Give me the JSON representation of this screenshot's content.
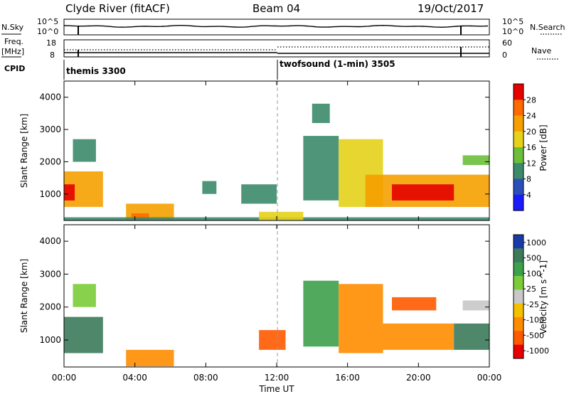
{
  "header": {
    "station": "Clyde River (fitACF)",
    "beam": "Beam 04",
    "date": "19/Oct/2017"
  },
  "top_panel": {
    "left_label": "N.Sky",
    "left_ticks": [
      "10^5",
      "10^0"
    ],
    "right_label": "N.Search",
    "right_ticks": [
      "10^5",
      "10^0"
    ]
  },
  "freq_panel": {
    "left_label_1": "Freq.",
    "left_label_2": "[MHz]",
    "left_ticks": [
      "18",
      "8"
    ],
    "right_label": "Nave",
    "right_ticks": [
      "60",
      "0"
    ],
    "cpid_label": "CPID"
  },
  "cpid": [
    {
      "name": "themis 3300",
      "start_hour": 0
    },
    {
      "name": "twofsound (1-min) 3505",
      "start_hour": 12
    }
  ],
  "colors": {
    "power_scale": [
      "#1a1aff",
      "#2b4fb8",
      "#3c8a6a",
      "#6cbf3a",
      "#e6d21a",
      "#f5a000",
      "#ff6a00",
      "#e60000"
    ],
    "velocity_scale": [
      "#1a3aa8",
      "#3c7a5a",
      "#3da04a",
      "#7acc3a",
      "#c8c8c8",
      "#f5c000",
      "#ff8c00",
      "#ff5a00",
      "#e60000"
    ]
  },
  "chart_data": [
    {
      "type": "heatmap",
      "title": "Power",
      "ylabel": "Slant Range [km]",
      "xlabel": "Time UT",
      "x_ticks": [
        "00:00",
        "04:00",
        "08:00",
        "12:00",
        "16:00",
        "20:00",
        "00:00"
      ],
      "xlim": [
        0,
        24
      ],
      "ylim": [
        180,
        4500
      ],
      "y_ticks": [
        1000,
        2000,
        3000,
        4000
      ],
      "colorbar": {
        "label": "Power [dB]",
        "ticks": [
          4,
          8,
          12,
          16,
          20,
          24,
          28
        ],
        "range": [
          0,
          32
        ]
      },
      "regions": [
        {
          "t0": 0.0,
          "t1": 2.2,
          "r0": 600,
          "r1": 1700,
          "value": 20
        },
        {
          "t0": 0.0,
          "t1": 0.6,
          "r0": 800,
          "r1": 1300,
          "value": 28
        },
        {
          "t0": 0.5,
          "t1": 1.8,
          "r0": 2000,
          "r1": 2700,
          "value": 8
        },
        {
          "t0": 3.5,
          "t1": 6.2,
          "r0": 200,
          "r1": 700,
          "value": 22
        },
        {
          "t0": 3.8,
          "t1": 4.8,
          "r0": 200,
          "r1": 400,
          "value": 26
        },
        {
          "t0": 0.0,
          "t1": 24.0,
          "r0": 180,
          "r1": 280,
          "value": 10
        },
        {
          "t0": 10.0,
          "t1": 12.0,
          "r0": 700,
          "r1": 1300,
          "value": 8
        },
        {
          "t0": 7.8,
          "t1": 8.6,
          "r0": 1000,
          "r1": 1400,
          "value": 8
        },
        {
          "t0": 11.0,
          "t1": 13.5,
          "r0": 180,
          "r1": 450,
          "value": 18
        },
        {
          "t0": 13.5,
          "t1": 15.5,
          "r0": 800,
          "r1": 2800,
          "value": 10
        },
        {
          "t0": 15.5,
          "t1": 18.0,
          "r0": 600,
          "r1": 2700,
          "value": 16
        },
        {
          "t0": 17.0,
          "t1": 24.0,
          "r0": 600,
          "r1": 1600,
          "value": 22
        },
        {
          "t0": 18.5,
          "t1": 22.0,
          "r0": 800,
          "r1": 1300,
          "value": 28
        },
        {
          "t0": 22.5,
          "t1": 24.0,
          "r0": 1900,
          "r1": 2200,
          "value": 12
        },
        {
          "t0": 14.0,
          "t1": 15.0,
          "r0": 3200,
          "r1": 3800,
          "value": 10
        }
      ]
    },
    {
      "type": "heatmap",
      "title": "Velocity",
      "ylabel": "Slant Range [km]",
      "xlabel": "Time UT",
      "x_ticks": [
        "00:00",
        "04:00",
        "08:00",
        "12:00",
        "16:00",
        "20:00",
        "00:00"
      ],
      "xlim": [
        0,
        24
      ],
      "ylim": [
        180,
        4500
      ],
      "y_ticks": [
        1000,
        2000,
        3000,
        4000
      ],
      "colorbar": {
        "label": "Velocity [m s^-1]",
        "ticks": [
          1000,
          500,
          100,
          25,
          -25,
          -100,
          -500,
          -1000
        ],
        "range": [
          -1200,
          1200
        ]
      },
      "regions": [
        {
          "t0": 0.0,
          "t1": 2.2,
          "r0": 600,
          "r1": 1700,
          "value": 300
        },
        {
          "t0": 0.5,
          "t1": 1.8,
          "r0": 2000,
          "r1": 2700,
          "value": 50
        },
        {
          "t0": 3.5,
          "t1": 6.2,
          "r0": 200,
          "r1": 700,
          "value": -200
        },
        {
          "t0": 11.0,
          "t1": 12.5,
          "r0": 700,
          "r1": 1300,
          "value": -400
        },
        {
          "t0": 13.5,
          "t1": 15.5,
          "r0": 800,
          "r1": 2800,
          "value": 150
        },
        {
          "t0": 15.5,
          "t1": 18.0,
          "r0": 600,
          "r1": 2700,
          "value": -150
        },
        {
          "t0": 18.0,
          "t1": 22.0,
          "r0": 700,
          "r1": 1500,
          "value": -300
        },
        {
          "t0": 18.5,
          "t1": 21.0,
          "r0": 1900,
          "r1": 2300,
          "value": -700
        },
        {
          "t0": 22.0,
          "t1": 24.0,
          "r0": 700,
          "r1": 1500,
          "value": 300
        },
        {
          "t0": 22.5,
          "t1": 24.0,
          "r0": 1900,
          "r1": 2200,
          "value": 0
        }
      ]
    }
  ]
}
